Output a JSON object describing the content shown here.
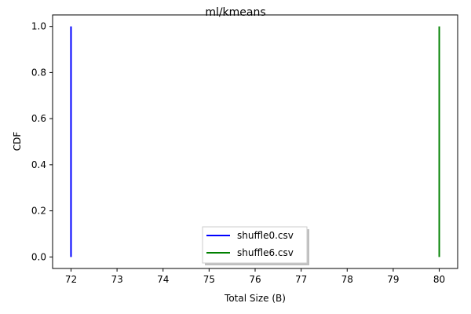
{
  "chart_data": {
    "type": "line",
    "title": "ml/kmeans",
    "xlabel": "Total Size (B)",
    "ylabel": "CDF",
    "xlim": [
      71.6,
      80.4
    ],
    "ylim": [
      -0.05,
      1.05
    ],
    "xticks": [
      72,
      73,
      74,
      75,
      76,
      77,
      78,
      79,
      80
    ],
    "yticks": [
      0.0,
      0.2,
      0.4,
      0.6,
      0.8,
      1.0
    ],
    "xtick_labels": [
      "72",
      "73",
      "74",
      "75",
      "76",
      "77",
      "78",
      "79",
      "80"
    ],
    "ytick_labels": [
      "0.0",
      "0.2",
      "0.4",
      "0.6",
      "0.8",
      "1.0"
    ],
    "grid": false,
    "legend_position": "bottom-center",
    "series": [
      {
        "name": "shuffle0.csv",
        "color": "#0000ff",
        "x": [
          72,
          72
        ],
        "y": [
          0.0,
          1.0
        ]
      },
      {
        "name": "shuffle6.csv",
        "color": "#008000",
        "x": [
          80,
          80
        ],
        "y": [
          0.0,
          1.0
        ]
      }
    ]
  }
}
